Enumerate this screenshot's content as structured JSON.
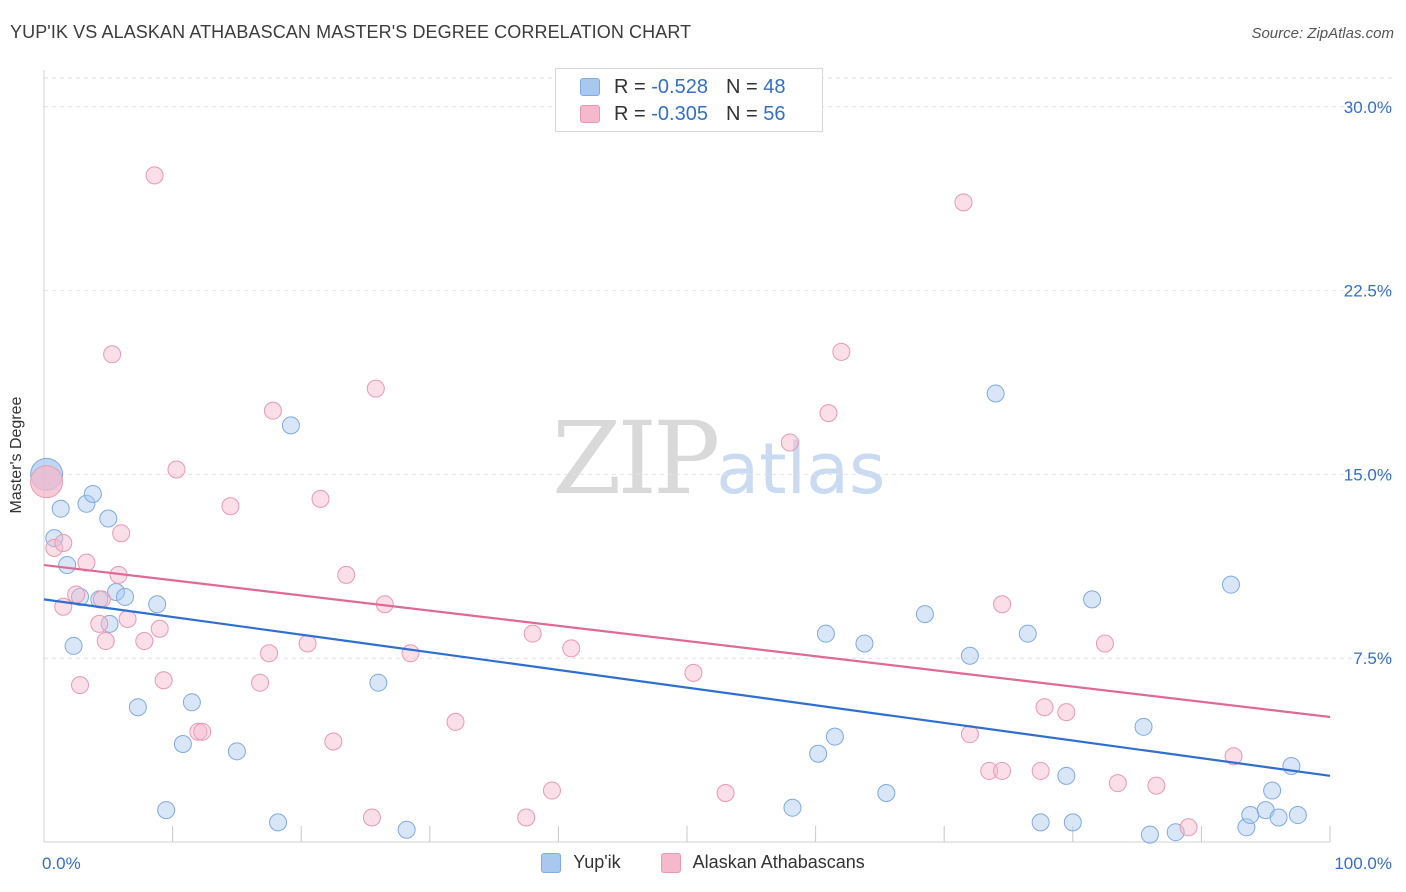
{
  "title": "YUP'IK VS ALASKAN ATHABASCAN MASTER'S DEGREE CORRELATION CHART",
  "source": "Source: ZipAtlas.com",
  "watermark": {
    "zip": "ZIP",
    "atlas": "atlas"
  },
  "legend_top": [
    {
      "r_label": "R =",
      "r_value": "-0.528",
      "n_label": "N =",
      "n_value": "48",
      "color": "#a9c8f0"
    },
    {
      "r_label": "R =",
      "r_value": "-0.305",
      "n_label": "N =",
      "n_value": "56",
      "color": "#f6b8cb"
    }
  ],
  "legend_bottom": [
    {
      "label": "Yup'ik",
      "color": "#a9c8f0"
    },
    {
      "label": "Alaskan Athabascans",
      "color": "#f6b8cb"
    }
  ],
  "chart_data": {
    "type": "scatter",
    "ylabel": "Master's Degree",
    "xlim": [
      0,
      100
    ],
    "ylim": [
      0,
      31.5
    ],
    "x_tick_labels": [
      {
        "value": 0,
        "label": "0.0%"
      },
      {
        "value": 100,
        "label": "100.0%"
      }
    ],
    "y_tick_labels": [
      {
        "value": 7.5,
        "label": "7.5%"
      },
      {
        "value": 15,
        "label": "15.0%"
      },
      {
        "value": 22.5,
        "label": "22.5%"
      },
      {
        "value": 30,
        "label": "30.0%"
      }
    ],
    "grid": true,
    "series": [
      {
        "name": "Yup'ik",
        "color": "#a9c8f0",
        "stroke": "#7faae3",
        "trend_color": "#2f6fd0",
        "trend": {
          "x": [
            0,
            100
          ],
          "y": [
            9.9,
            2.7
          ]
        },
        "points": [
          {
            "x": 0.2,
            "y": 15.0,
            "big": true
          },
          {
            "x": 0.8,
            "y": 12.4
          },
          {
            "x": 1.3,
            "y": 13.6
          },
          {
            "x": 1.8,
            "y": 11.3
          },
          {
            "x": 2.3,
            "y": 8.0
          },
          {
            "x": 2.8,
            "y": 10.0
          },
          {
            "x": 3.3,
            "y": 13.8
          },
          {
            "x": 3.8,
            "y": 14.2
          },
          {
            "x": 4.3,
            "y": 9.9
          },
          {
            "x": 5.0,
            "y": 13.2
          },
          {
            "x": 5.1,
            "y": 8.9
          },
          {
            "x": 5.6,
            "y": 10.2
          },
          {
            "x": 6.3,
            "y": 10.0
          },
          {
            "x": 7.3,
            "y": 5.5
          },
          {
            "x": 8.8,
            "y": 9.7
          },
          {
            "x": 9.5,
            "y": 1.3
          },
          {
            "x": 10.8,
            "y": 4.0
          },
          {
            "x": 11.5,
            "y": 5.7
          },
          {
            "x": 15.0,
            "y": 3.7
          },
          {
            "x": 18.2,
            "y": 0.8
          },
          {
            "x": 19.2,
            "y": 17.0
          },
          {
            "x": 26.0,
            "y": 6.5
          },
          {
            "x": 28.2,
            "y": 0.5
          },
          {
            "x": 58.2,
            "y": 1.4
          },
          {
            "x": 60.2,
            "y": 3.6
          },
          {
            "x": 60.8,
            "y": 8.5
          },
          {
            "x": 61.5,
            "y": 4.3
          },
          {
            "x": 63.8,
            "y": 8.1
          },
          {
            "x": 65.5,
            "y": 2.0
          },
          {
            "x": 68.5,
            "y": 9.3
          },
          {
            "x": 72.0,
            "y": 7.6
          },
          {
            "x": 74.0,
            "y": 18.3
          },
          {
            "x": 76.5,
            "y": 8.5
          },
          {
            "x": 77.5,
            "y": 0.8
          },
          {
            "x": 79.5,
            "y": 2.7
          },
          {
            "x": 80.0,
            "y": 0.8
          },
          {
            "x": 81.5,
            "y": 9.9
          },
          {
            "x": 85.5,
            "y": 4.7
          },
          {
            "x": 86.0,
            "y": 0.3
          },
          {
            "x": 88.0,
            "y": 0.4
          },
          {
            "x": 92.3,
            "y": 10.5
          },
          {
            "x": 93.5,
            "y": 0.6
          },
          {
            "x": 93.8,
            "y": 1.1
          },
          {
            "x": 95.0,
            "y": 1.3
          },
          {
            "x": 95.5,
            "y": 2.1
          },
          {
            "x": 96.0,
            "y": 1.0
          },
          {
            "x": 97.0,
            "y": 3.1
          },
          {
            "x": 97.5,
            "y": 1.1
          }
        ]
      },
      {
        "name": "Alaskan Athabascans",
        "color": "#f6b8cb",
        "stroke": "#eb98b2",
        "trend_color": "#e06a96",
        "trend": {
          "x": [
            0,
            100
          ],
          "y": [
            11.3,
            5.1
          ]
        },
        "points": [
          {
            "x": 0.2,
            "y": 14.7,
            "big": true
          },
          {
            "x": 0.8,
            "y": 12.0
          },
          {
            "x": 1.5,
            "y": 12.2
          },
          {
            "x": 1.5,
            "y": 9.6
          },
          {
            "x": 2.5,
            "y": 10.1
          },
          {
            "x": 2.8,
            "y": 6.4
          },
          {
            "x": 3.3,
            "y": 11.4
          },
          {
            "x": 4.3,
            "y": 8.9
          },
          {
            "x": 4.5,
            "y": 9.9
          },
          {
            "x": 4.8,
            "y": 8.2
          },
          {
            "x": 5.3,
            "y": 19.9
          },
          {
            "x": 5.8,
            "y": 10.9
          },
          {
            "x": 6.0,
            "y": 12.6
          },
          {
            "x": 6.5,
            "y": 9.1
          },
          {
            "x": 7.8,
            "y": 8.2
          },
          {
            "x": 8.6,
            "y": 27.2
          },
          {
            "x": 9.0,
            "y": 8.7
          },
          {
            "x": 9.3,
            "y": 6.6
          },
          {
            "x": 10.3,
            "y": 15.2
          },
          {
            "x": 12.0,
            "y": 4.5
          },
          {
            "x": 12.3,
            "y": 4.5
          },
          {
            "x": 14.5,
            "y": 13.7
          },
          {
            "x": 16.8,
            "y": 6.5
          },
          {
            "x": 17.5,
            "y": 7.7
          },
          {
            "x": 17.8,
            "y": 17.6
          },
          {
            "x": 20.5,
            "y": 8.1
          },
          {
            "x": 21.5,
            "y": 14.0
          },
          {
            "x": 22.5,
            "y": 4.1
          },
          {
            "x": 23.5,
            "y": 10.9
          },
          {
            "x": 25.5,
            "y": 1.0
          },
          {
            "x": 25.8,
            "y": 18.5
          },
          {
            "x": 26.5,
            "y": 9.7
          },
          {
            "x": 28.5,
            "y": 7.7
          },
          {
            "x": 32.0,
            "y": 4.9
          },
          {
            "x": 37.5,
            "y": 1.0
          },
          {
            "x": 38.0,
            "y": 8.5
          },
          {
            "x": 39.5,
            "y": 2.1
          },
          {
            "x": 41.0,
            "y": 7.9
          },
          {
            "x": 50.5,
            "y": 6.9
          },
          {
            "x": 53.0,
            "y": 2.0
          },
          {
            "x": 58.0,
            "y": 16.3
          },
          {
            "x": 61.0,
            "y": 17.5
          },
          {
            "x": 62.0,
            "y": 20.0
          },
          {
            "x": 71.5,
            "y": 26.1
          },
          {
            "x": 72.0,
            "y": 4.4
          },
          {
            "x": 73.5,
            "y": 2.9
          },
          {
            "x": 74.5,
            "y": 2.9
          },
          {
            "x": 74.5,
            "y": 9.7
          },
          {
            "x": 77.5,
            "y": 2.9
          },
          {
            "x": 77.8,
            "y": 5.5
          },
          {
            "x": 79.5,
            "y": 5.3
          },
          {
            "x": 82.5,
            "y": 8.1
          },
          {
            "x": 83.5,
            "y": 2.4
          },
          {
            "x": 86.5,
            "y": 2.3
          },
          {
            "x": 89.0,
            "y": 0.6
          },
          {
            "x": 92.5,
            "y": 3.5
          }
        ]
      }
    ]
  }
}
